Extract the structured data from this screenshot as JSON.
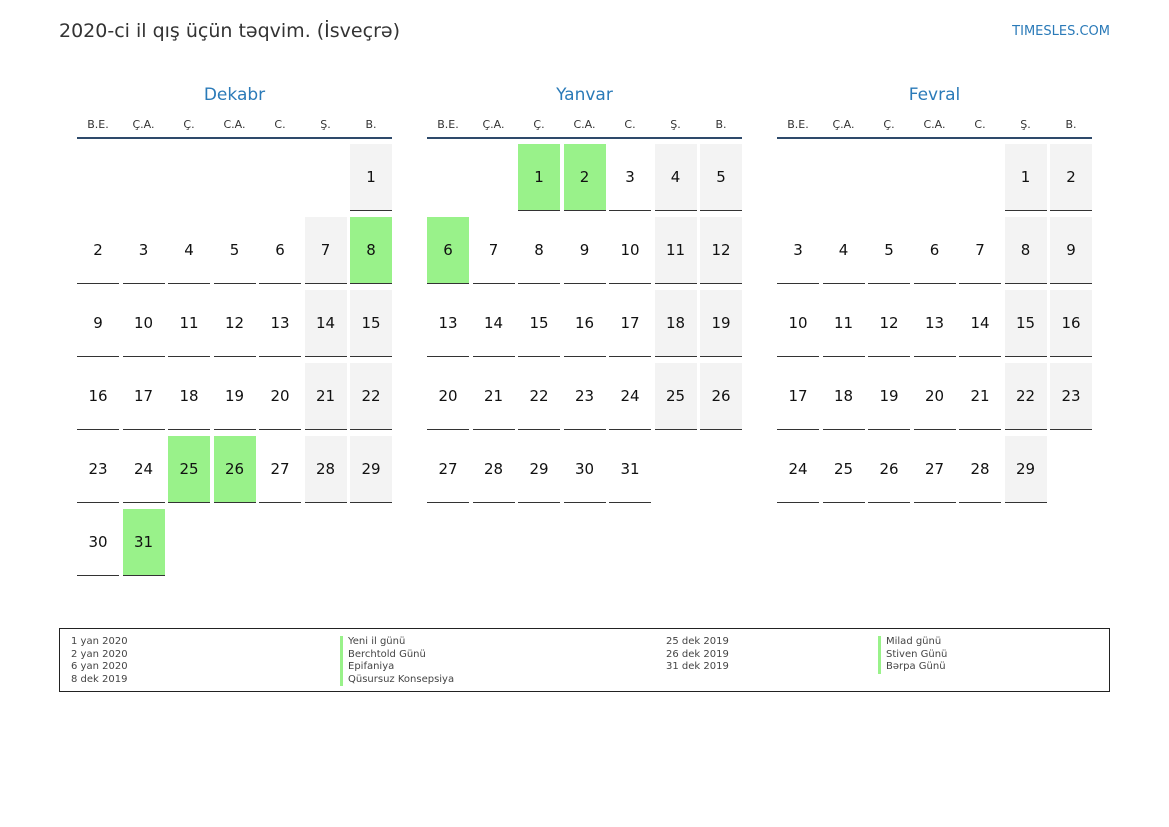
{
  "header": {
    "title": "2020-ci il qış üçün təqvim. (İsveçrə)",
    "site": "TIMESLES.COM"
  },
  "colors": {
    "accent": "#2a7ab8",
    "holiday": "#99f28a",
    "weekend": "#f3f3f3",
    "rule": "#2e4a6b"
  },
  "weekdays": [
    "B.E.",
    "Ç.A.",
    "Ç.",
    "C.A.",
    "C.",
    "Ş.",
    "B."
  ],
  "months": [
    {
      "name": "Dekabr",
      "start_weekday": 6,
      "days": 31,
      "holidays": [
        8,
        25,
        26,
        31
      ]
    },
    {
      "name": "Yanvar",
      "start_weekday": 2,
      "days": 31,
      "holidays": [
        1,
        2,
        6
      ]
    },
    {
      "name": "Fevral",
      "start_weekday": 5,
      "days": 29,
      "holidays": []
    }
  ],
  "legend": {
    "left": {
      "dates": [
        "1 yan 2020",
        "2 yan 2020",
        "6 yan 2020",
        "8 dek 2019"
      ],
      "names": [
        "Yeni il günü",
        "Berchtold Günü",
        "Epifaniya",
        "Qüsursuz Konsepsiya"
      ]
    },
    "right": {
      "dates": [
        "25 dek 2019",
        "26 dek 2019",
        "31 dek 2019"
      ],
      "names": [
        "Milad günü",
        "Stiven Günü",
        "Bərpa Günü"
      ]
    }
  }
}
